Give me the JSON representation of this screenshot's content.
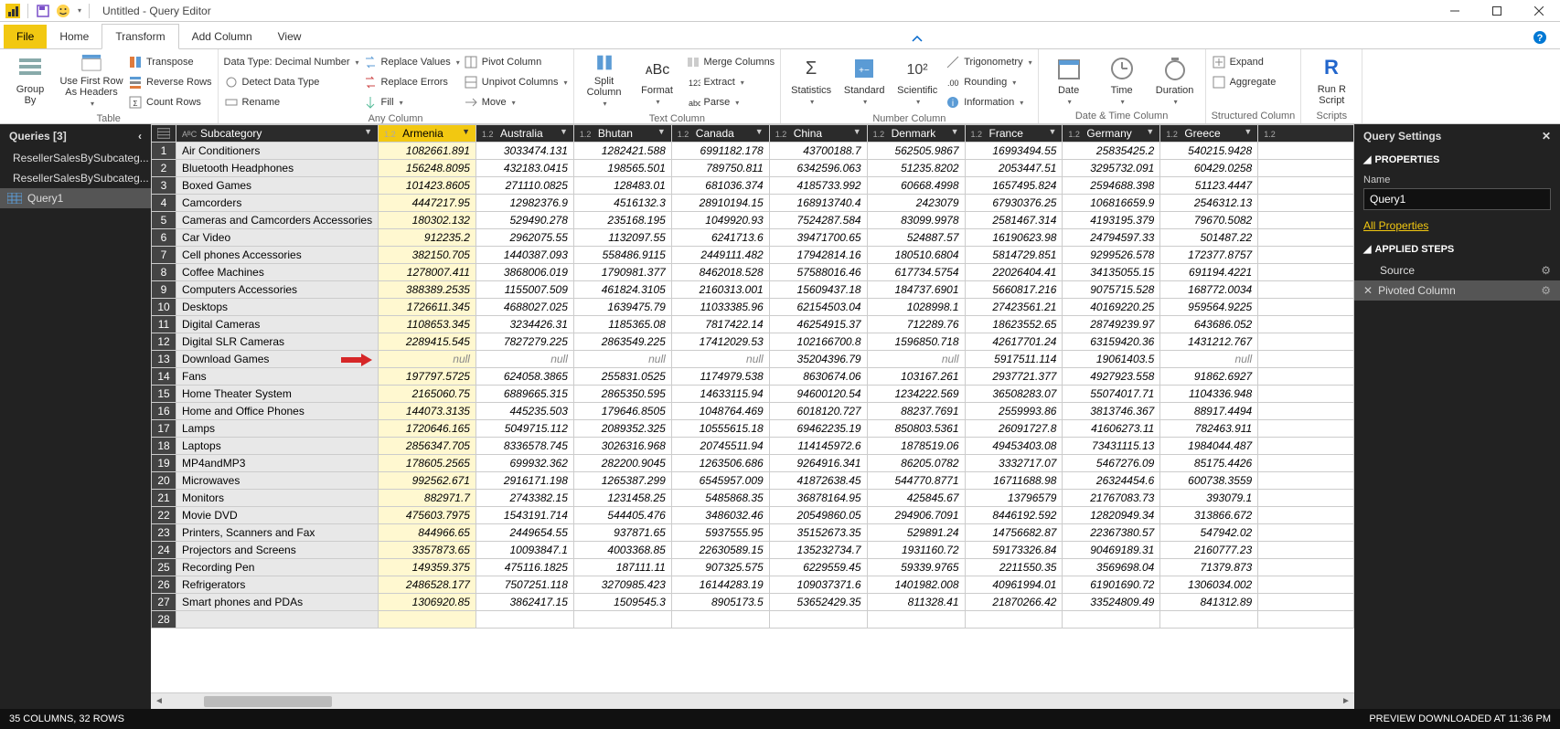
{
  "title": "Untitled - Query Editor",
  "menus": {
    "file": "File",
    "home": "Home",
    "transform": "Transform",
    "addcol": "Add Column",
    "view": "View"
  },
  "ribbon": {
    "groupBy": "Group\nBy",
    "useFirstRow": "Use First Row\nAs Headers",
    "transpose": "Transpose",
    "reverseRows": "Reverse Rows",
    "countRows": "Count Rows",
    "dataType": "Data Type: Decimal Number",
    "detect": "Detect Data Type",
    "rename": "Rename",
    "replaceValues": "Replace Values",
    "replaceErrors": "Replace Errors",
    "fill": "Fill",
    "pivot": "Pivot Column",
    "unpivot": "Unpivot Columns",
    "move": "Move",
    "split": "Split\nColumn",
    "format": "Format",
    "mergeCols": "Merge Columns",
    "extract": "Extract",
    "parse": "Parse",
    "statistics": "Statistics",
    "standard": "Standard",
    "scientific": "Scientific",
    "trig": "Trigonometry",
    "rounding": "Rounding",
    "info": "Information",
    "date": "Date",
    "time": "Time",
    "duration": "Duration",
    "expand": "Expand",
    "aggregate": "Aggregate",
    "runr": "Run R\nScript",
    "g_table": "Table",
    "g_anycol": "Any Column",
    "g_textcol": "Text Column",
    "g_numcol": "Number Column",
    "g_datetime": "Date & Time Column",
    "g_struct": "Structured Column",
    "g_scripts": "Scripts"
  },
  "queries": {
    "header": "Queries [3]",
    "items": [
      "ResellerSalesBySubcateg...",
      "ResellerSalesBySubcateg...",
      "Query1"
    ]
  },
  "settings": {
    "header": "Query Settings",
    "properties": "PROPERTIES",
    "nameLabel": "Name",
    "nameValue": "Query1",
    "allProps": "All Properties",
    "appliedSteps": "APPLIED STEPS",
    "steps": [
      "Source",
      "Pivoted Column"
    ]
  },
  "columns": [
    "Subcategory",
    "Armenia",
    "Australia",
    "Bhutan",
    "Canada",
    "China",
    "Denmark",
    "France",
    "Germany",
    "Greece"
  ],
  "coltail": "1.2",
  "typeIcon": "1.2",
  "subTypeIcon": "AᴮC",
  "rows": [
    [
      "Air Conditioners",
      "1082661.891",
      "3033474.131",
      "1282421.588",
      "6991182.178",
      "43700188.7",
      "562505.9867",
      "16993494.55",
      "25835425.2",
      "540215.9428"
    ],
    [
      "Bluetooth Headphones",
      "156248.8095",
      "432183.0415",
      "198565.501",
      "789750.811",
      "6342596.063",
      "51235.8202",
      "2053447.51",
      "3295732.091",
      "60429.0258"
    ],
    [
      "Boxed Games",
      "101423.8605",
      "271110.0825",
      "128483.01",
      "681036.374",
      "4185733.992",
      "60668.4998",
      "1657495.824",
      "2594688.398",
      "51123.4447"
    ],
    [
      "Camcorders",
      "4447217.95",
      "12982376.9",
      "4516132.3",
      "28910194.15",
      "168913740.4",
      "2423079",
      "67930376.25",
      "106816659.9",
      "2546312.13"
    ],
    [
      "Cameras and Camcorders Accessories",
      "180302.132",
      "529490.278",
      "235168.195",
      "1049920.93",
      "7524287.584",
      "83099.9978",
      "2581467.314",
      "4193195.379",
      "79670.5082"
    ],
    [
      "Car Video",
      "912235.2",
      "2962075.55",
      "1132097.55",
      "6241713.6",
      "39471700.65",
      "524887.57",
      "16190623.98",
      "24794597.33",
      "501487.22"
    ],
    [
      "Cell phones Accessories",
      "382150.705",
      "1440387.093",
      "558486.9115",
      "2449111.482",
      "17942814.16",
      "180510.6804",
      "5814729.851",
      "9299526.578",
      "172377.8757"
    ],
    [
      "Coffee Machines",
      "1278007.411",
      "3868006.019",
      "1790981.377",
      "8462018.528",
      "57588016.46",
      "617734.5754",
      "22026404.41",
      "34135055.15",
      "691194.4221"
    ],
    [
      "Computers Accessories",
      "388389.2535",
      "1155007.509",
      "461824.3105",
      "2160313.001",
      "15609437.18",
      "184737.6901",
      "5660817.216",
      "9075715.528",
      "168772.0034"
    ],
    [
      "Desktops",
      "1726611.345",
      "4688027.025",
      "1639475.79",
      "11033385.96",
      "62154503.04",
      "1028998.1",
      "27423561.21",
      "40169220.25",
      "959564.9225"
    ],
    [
      "Digital Cameras",
      "1108653.345",
      "3234426.31",
      "1185365.08",
      "7817422.14",
      "46254915.37",
      "712289.76",
      "18623552.65",
      "28749239.97",
      "643686.052"
    ],
    [
      "Digital SLR Cameras",
      "2289415.545",
      "7827279.225",
      "2863549.225",
      "17412029.53",
      "102166700.8",
      "1596850.718",
      "42617701.24",
      "63159420.36",
      "1431212.767"
    ],
    [
      "Download Games",
      "null",
      "null",
      "null",
      "null",
      "35204396.79",
      "null",
      "5917511.114",
      "19061403.5",
      "null"
    ],
    [
      "Fans",
      "197797.5725",
      "624058.3865",
      "255831.0525",
      "1174979.538",
      "8630674.06",
      "103167.261",
      "2937721.377",
      "4927923.558",
      "91862.6927"
    ],
    [
      "Home Theater System",
      "2165060.75",
      "6889665.315",
      "2865350.595",
      "14633115.94",
      "94600120.54",
      "1234222.569",
      "36508283.07",
      "55074017.71",
      "1104336.948"
    ],
    [
      "Home and Office Phones",
      "144073.3135",
      "445235.503",
      "179646.8505",
      "1048764.469",
      "6018120.727",
      "88237.7691",
      "2559993.86",
      "3813746.367",
      "88917.4494"
    ],
    [
      "Lamps",
      "1720646.165",
      "5049715.112",
      "2089352.325",
      "10555615.18",
      "69462235.19",
      "850803.5361",
      "26091727.8",
      "41606273.11",
      "782463.911"
    ],
    [
      "Laptops",
      "2856347.705",
      "8336578.745",
      "3026316.968",
      "20745511.94",
      "114145972.6",
      "1878519.06",
      "49453403.08",
      "73431115.13",
      "1984044.487"
    ],
    [
      "MP4andMP3",
      "178605.2565",
      "699932.362",
      "282200.9045",
      "1263506.686",
      "9264916.341",
      "86205.0782",
      "3332717.07",
      "5467276.09",
      "85175.4426"
    ],
    [
      "Microwaves",
      "992562.671",
      "2916171.198",
      "1265387.299",
      "6545957.009",
      "41872638.45",
      "544770.8771",
      "16711688.98",
      "26324454.6",
      "600738.3559"
    ],
    [
      "Monitors",
      "882971.7",
      "2743382.15",
      "1231458.25",
      "5485868.35",
      "36878164.95",
      "425845.67",
      "13796579",
      "21767083.73",
      "393079.1"
    ],
    [
      "Movie DVD",
      "475603.7975",
      "1543191.714",
      "544405.476",
      "3486032.46",
      "20549860.05",
      "294906.7091",
      "8446192.592",
      "12820949.34",
      "313866.672"
    ],
    [
      "Printers, Scanners and Fax",
      "844966.65",
      "2449654.55",
      "937871.65",
      "5937555.95",
      "35152673.35",
      "529891.24",
      "14756682.87",
      "22367380.57",
      "547942.02"
    ],
    [
      "Projectors and Screens",
      "3357873.65",
      "10093847.1",
      "4003368.85",
      "22630589.15",
      "135232734.7",
      "1931160.72",
      "59173326.84",
      "90469189.31",
      "2160777.23"
    ],
    [
      "Recording Pen",
      "149359.375",
      "475116.1825",
      "187111.11",
      "907325.575",
      "6229559.45",
      "59339.9765",
      "2211550.35",
      "3569698.04",
      "71379.873"
    ],
    [
      "Refrigerators",
      "2486528.177",
      "7507251.118",
      "3270985.423",
      "16144283.19",
      "109037371.6",
      "1401982.008",
      "40961994.01",
      "61901690.72",
      "1306034.002"
    ],
    [
      "Smart phones and PDAs",
      "1306920.85",
      "3862417.15",
      "1509545.3",
      "8905173.5",
      "53652429.35",
      "811328.41",
      "21870266.42",
      "33524809.49",
      "841312.89"
    ],
    [
      "",
      "",
      "",
      "",
      "",
      "",
      "",
      "",
      "",
      ""
    ]
  ],
  "arrowRow": 12,
  "status": {
    "left": "35 COLUMNS, 32 ROWS",
    "right": "PREVIEW DOWNLOADED AT 11:36 PM"
  },
  "colors": {
    "accent": "#f2c811",
    "dark": "#222222"
  }
}
